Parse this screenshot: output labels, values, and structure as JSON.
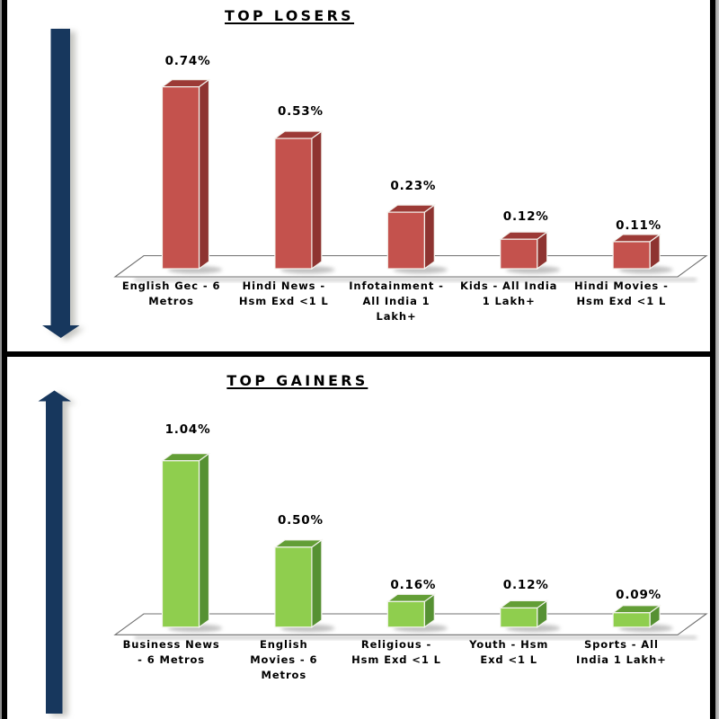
{
  "accent_colors": {
    "arrow_blue": "#17375D",
    "loser_bar_front": "#C4524D",
    "loser_bar_top": "#9C3A36",
    "loser_bar_side": "#8E3431",
    "gainer_bar_front": "#8FCE4E",
    "gainer_bar_top": "#639E36",
    "gainer_bar_side": "#569133",
    "frame_black": "#000000",
    "floor_edge_gray": "#808080"
  },
  "chart_data": [
    {
      "type": "bar",
      "style": "3d-column",
      "title": "TOP LOSERS",
      "direction_icon": "down-arrow",
      "bar_color": "#C4524D",
      "categories": [
        "English Gec - 6 Metros",
        "Hindi News - Hsm Exd <1 L",
        "Infotainment - All India 1 Lakh+",
        "Kids - All India 1 Lakh+",
        "Hindi Movies - Hsm Exd <1 L"
      ],
      "category_lines": [
        [
          "English Gec - 6",
          "Metros"
        ],
        [
          "Hindi News -",
          "Hsm Exd <1 L"
        ],
        [
          "Infotainment -",
          "All India 1",
          "Lakh+"
        ],
        [
          "Kids - All India",
          "1 Lakh+"
        ],
        [
          "Hindi Movies -",
          "Hsm Exd <1 L"
        ]
      ],
      "values": [
        0.74,
        0.53,
        0.23,
        0.12,
        0.11
      ],
      "value_labels": [
        "0.74%",
        "0.53%",
        "0.23%",
        "0.12%",
        "0.11%"
      ],
      "unit": "%",
      "xlabel": "",
      "ylabel": "",
      "legend": false,
      "grid": false
    },
    {
      "type": "bar",
      "style": "3d-column",
      "title": "TOP GAINERS",
      "direction_icon": "up-arrow",
      "bar_color": "#8FCE4E",
      "categories": [
        "Business News - 6 Metros",
        "English Movies - 6 Metros",
        "Religious - Hsm Exd <1 L",
        "Youth - Hsm Exd <1 L",
        "Sports - All India 1 Lakh+"
      ],
      "category_lines": [
        [
          "Business News",
          "- 6 Metros"
        ],
        [
          "English",
          "Movies - 6",
          "Metros"
        ],
        [
          "Religious -",
          "Hsm Exd <1 L"
        ],
        [
          "Youth - Hsm",
          "Exd <1 L"
        ],
        [
          "Sports - All",
          "India 1 Lakh+"
        ]
      ],
      "values": [
        1.04,
        0.5,
        0.16,
        0.12,
        0.09
      ],
      "value_labels": [
        "1.04%",
        "0.50%",
        "0.16%",
        "0.12%",
        "0.09%"
      ],
      "unit": "%",
      "xlabel": "",
      "ylabel": "",
      "legend": false,
      "grid": false
    }
  ]
}
